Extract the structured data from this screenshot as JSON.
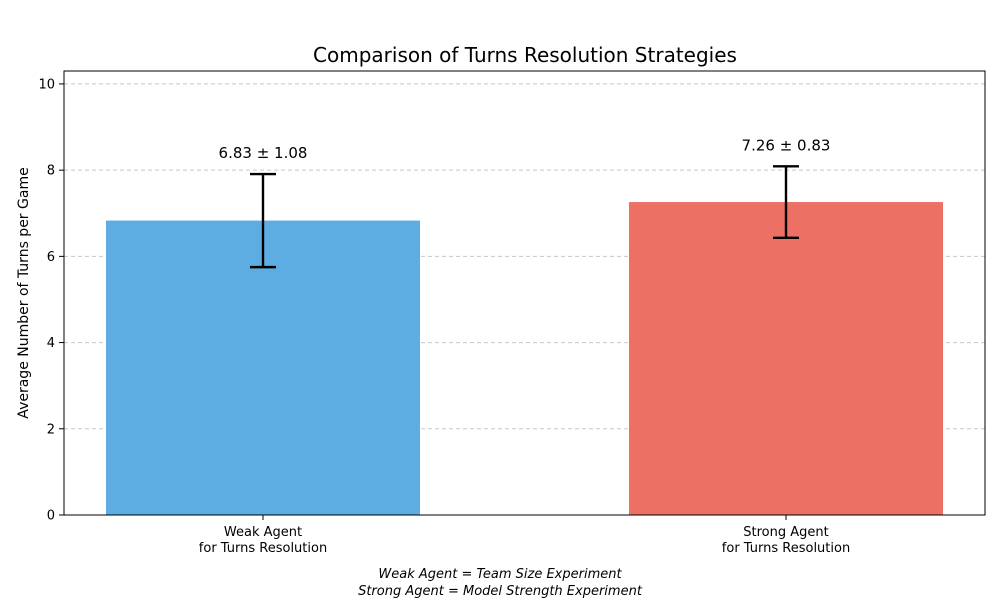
{
  "chart_data": {
    "type": "bar",
    "title": "Comparison of Turns Resolution Strategies",
    "xlabel": "",
    "ylabel": "Average Number of Turns per Game",
    "ylim": [
      0,
      10.3
    ],
    "yticks": [
      0,
      2,
      4,
      6,
      8,
      10
    ],
    "grid": "y-dashed",
    "categories": [
      [
        "Weak Agent",
        "for Turns Resolution"
      ],
      [
        "Strong Agent",
        "for Turns Resolution"
      ]
    ],
    "values": [
      6.83,
      7.26
    ],
    "errors": [
      1.08,
      0.83
    ],
    "data_labels": [
      "6.83 ± 1.08",
      "7.26 ± 0.83"
    ],
    "colors": [
      "#5dade2",
      "#ec7063"
    ],
    "footnotes": [
      "Weak Agent = Team Size Experiment",
      "Strong Agent = Model Strength Experiment"
    ]
  }
}
